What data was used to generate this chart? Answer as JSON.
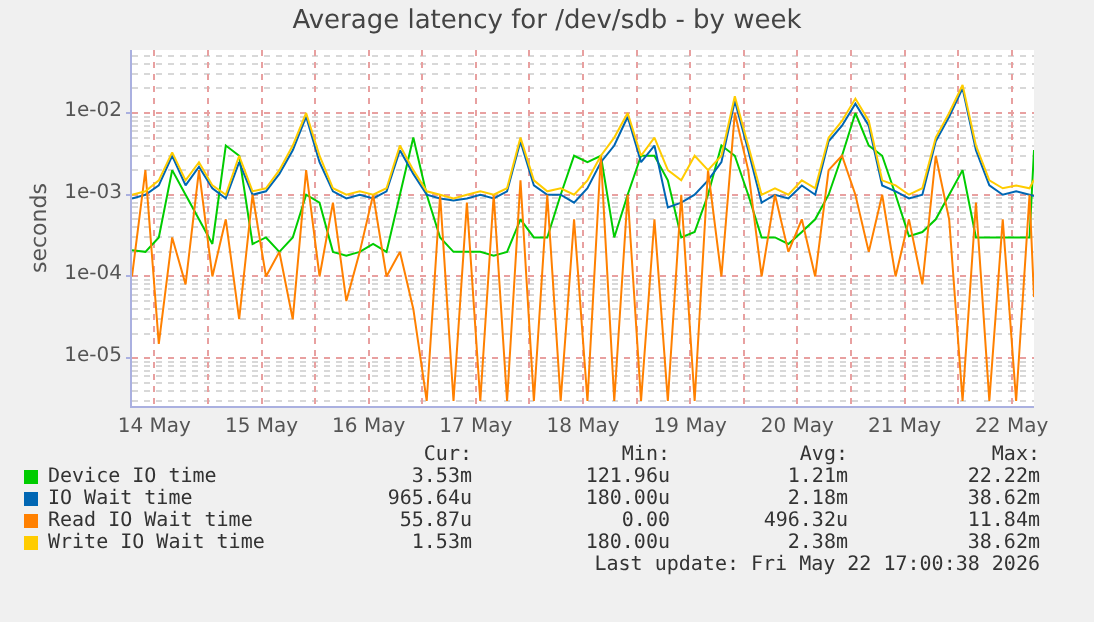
{
  "chart_data": {
    "type": "line",
    "title": "Average latency for /dev/sdb - by week",
    "ylabel": "seconds",
    "x": [
      "2026-05-14T07:00",
      "2026-05-14T10:00",
      "2026-05-14T13:00",
      "2026-05-14T16:00",
      "2026-05-14T19:00",
      "2026-05-14T22:00",
      "2026-05-15T01:00",
      "2026-05-15T04:00",
      "2026-05-15T07:00",
      "2026-05-15T10:00",
      "2026-05-15T13:00",
      "2026-05-15T16:00",
      "2026-05-15T19:00",
      "2026-05-15T22:00",
      "2026-05-16T01:00",
      "2026-05-16T04:00",
      "2026-05-16T07:00",
      "2026-05-16T10:00",
      "2026-05-16T13:00",
      "2026-05-16T16:00",
      "2026-05-16T19:00",
      "2026-05-16T22:00",
      "2026-05-17T01:00",
      "2026-05-17T04:00",
      "2026-05-17T07:00",
      "2026-05-17T10:00",
      "2026-05-17T13:00",
      "2026-05-17T16:00",
      "2026-05-17T19:00",
      "2026-05-17T22:00",
      "2026-05-18T01:00",
      "2026-05-18T04:00",
      "2026-05-18T07:00",
      "2026-05-18T10:00",
      "2026-05-18T13:00",
      "2026-05-18T16:00",
      "2026-05-18T19:00",
      "2026-05-18T22:00",
      "2026-05-19T01:00",
      "2026-05-19T04:00",
      "2026-05-19T07:00",
      "2026-05-19T10:00",
      "2026-05-19T13:00",
      "2026-05-19T16:00",
      "2026-05-19T19:00",
      "2026-05-19T22:00",
      "2026-05-20T01:00",
      "2026-05-20T04:00",
      "2026-05-20T07:00",
      "2026-05-20T10:00",
      "2026-05-20T13:00",
      "2026-05-20T16:00",
      "2026-05-20T19:00",
      "2026-05-20T22:00",
      "2026-05-21T01:00",
      "2026-05-21T04:00",
      "2026-05-21T07:00",
      "2026-05-21T10:00",
      "2026-05-21T13:00",
      "2026-05-21T16:00",
      "2026-05-21T19:00",
      "2026-05-21T22:00",
      "2026-05-22T01:00",
      "2026-05-22T04:00",
      "2026-05-22T07:00",
      "2026-05-22T10:00",
      "2026-05-22T13:00",
      "2026-05-22T16:00",
      "2026-05-22T17:00"
    ],
    "series": [
      {
        "name": "Device IO time",
        "color": "#00cc00",
        "values": [
          0.00021,
          0.0002,
          0.0003,
          0.002,
          0.001,
          0.0005,
          0.00025,
          0.004,
          0.003,
          0.00025,
          0.0003,
          0.0002,
          0.0003,
          0.001,
          0.0008,
          0.0002,
          0.00018,
          0.0002,
          0.00025,
          0.0002,
          0.001,
          0.005,
          0.001,
          0.0003,
          0.0002,
          0.0002,
          0.0002,
          0.00018,
          0.0002,
          0.0005,
          0.0003,
          0.0003,
          0.001,
          0.003,
          0.0025,
          0.003,
          0.0003,
          0.001,
          0.003,
          0.003,
          0.0015,
          0.0003,
          0.00035,
          0.001,
          0.004,
          0.003,
          0.001,
          0.0003,
          0.0003,
          0.00025,
          0.00035,
          0.0005,
          0.001,
          0.003,
          0.01,
          0.004,
          0.003,
          0.001,
          0.00031,
          0.00035,
          0.0005,
          0.001,
          0.002,
          0.0003,
          0.0003,
          0.0003,
          0.0003,
          0.0003,
          0.00353
        ]
      },
      {
        "name": "IO Wait time",
        "color": "#0066b3",
        "values": [
          0.0009,
          0.001,
          0.0013,
          0.003,
          0.0013,
          0.0022,
          0.0012,
          0.0009,
          0.0025,
          0.001,
          0.0011,
          0.0018,
          0.0035,
          0.009,
          0.0025,
          0.0011,
          0.0009,
          0.001,
          0.0009,
          0.0011,
          0.0035,
          0.0018,
          0.001,
          0.0009,
          0.00085,
          0.0009,
          0.001,
          0.0009,
          0.0011,
          0.0045,
          0.0013,
          0.001,
          0.001,
          0.0008,
          0.0012,
          0.0025,
          0.004,
          0.009,
          0.0025,
          0.004,
          0.0007,
          0.0008,
          0.001,
          0.0015,
          0.0025,
          0.014,
          0.0035,
          0.0008,
          0.001,
          0.0009,
          0.0013,
          0.001,
          0.0045,
          0.007,
          0.013,
          0.007,
          0.0013,
          0.0011,
          0.0009,
          0.001,
          0.0045,
          0.009,
          0.02,
          0.0035,
          0.0013,
          0.001,
          0.0011,
          0.001,
          0.000966
        ]
      },
      {
        "name": "Read IO Wait time",
        "color": "#ff8000",
        "values": [
          0.0001,
          0.002,
          1.5e-05,
          0.0003,
          8e-05,
          0.002,
          0.0001,
          0.0005,
          3e-05,
          0.001,
          0.0001,
          0.0002,
          3e-05,
          0.002,
          0.0001,
          0.0008,
          5e-05,
          0.0002,
          0.001,
          0.0001,
          0.0002,
          4e-05,
          3e-06,
          0.001,
          3e-06,
          0.0008,
          3e-06,
          0.001,
          3e-06,
          0.0015,
          3e-06,
          0.001,
          3e-06,
          0.0005,
          3e-06,
          0.003,
          3e-06,
          0.001,
          3e-06,
          0.0005,
          3e-06,
          0.001,
          3e-06,
          0.002,
          0.0001,
          0.01,
          0.002,
          0.0001,
          0.001,
          0.0002,
          0.0005,
          0.0001,
          0.002,
          0.003,
          0.001,
          0.0002,
          0.001,
          0.0001,
          0.0005,
          8e-05,
          0.003,
          0.0005,
          3e-06,
          0.0008,
          3e-06,
          0.0005,
          3e-06,
          0.001,
          5.59e-05
        ]
      },
      {
        "name": "Write IO Wait time",
        "color": "#ffcc00",
        "values": [
          0.001,
          0.0011,
          0.0015,
          0.0033,
          0.0015,
          0.0025,
          0.0013,
          0.001,
          0.003,
          0.0011,
          0.0012,
          0.002,
          0.004,
          0.01,
          0.003,
          0.0012,
          0.001,
          0.0011,
          0.001,
          0.0012,
          0.004,
          0.002,
          0.0011,
          0.001,
          0.0009,
          0.001,
          0.0011,
          0.001,
          0.0012,
          0.005,
          0.0015,
          0.0011,
          0.0012,
          0.001,
          0.0015,
          0.003,
          0.005,
          0.01,
          0.003,
          0.005,
          0.002,
          0.0015,
          0.003,
          0.002,
          0.003,
          0.016,
          0.004,
          0.001,
          0.0012,
          0.001,
          0.0015,
          0.0012,
          0.005,
          0.008,
          0.015,
          0.008,
          0.0015,
          0.0013,
          0.001,
          0.0012,
          0.005,
          0.01,
          0.022,
          0.004,
          0.0015,
          0.0012,
          0.0013,
          0.0012,
          0.00153
        ]
      }
    ],
    "log": "y",
    "ylim": [
      2.6e-06,
      0.059
    ],
    "yticks": [
      {
        "value": 1e-05,
        "label": "1e-05"
      },
      {
        "value": 0.0001,
        "label": "1e-04"
      },
      {
        "value": 0.001,
        "label": "1e-03"
      },
      {
        "value": 0.01,
        "label": "1e-02"
      }
    ],
    "xlim": [
      "2026-05-14T07:00",
      "2026-05-22T17:00"
    ],
    "xticks": [
      {
        "value": "2026-05-14T12:00",
        "label": "14 May"
      },
      {
        "value": "2026-05-15T00:00",
        "label": null
      },
      {
        "value": "2026-05-15T12:00",
        "label": "15 May"
      },
      {
        "value": "2026-05-16T00:00",
        "label": null
      },
      {
        "value": "2026-05-16T12:00",
        "label": "16 May"
      },
      {
        "value": "2026-05-17T00:00",
        "label": null
      },
      {
        "value": "2026-05-17T12:00",
        "label": "17 May"
      },
      {
        "value": "2026-05-18T00:00",
        "label": null
      },
      {
        "value": "2026-05-18T12:00",
        "label": "18 May"
      },
      {
        "value": "2026-05-19T00:00",
        "label": null
      },
      {
        "value": "2026-05-19T12:00",
        "label": "19 May"
      },
      {
        "value": "2026-05-20T00:00",
        "label": null
      },
      {
        "value": "2026-05-20T12:00",
        "label": "20 May"
      },
      {
        "value": "2026-05-21T00:00",
        "label": null
      },
      {
        "value": "2026-05-21T12:00",
        "label": "21 May"
      },
      {
        "value": "2026-05-22T00:00",
        "label": null
      },
      {
        "value": "2026-05-22T12:00",
        "label": "22 May"
      }
    ],
    "grid": true,
    "legend": "bottom",
    "annotations": [
      "Cur:",
      "Min:",
      "Avg:",
      "Max:",
      "3.53m",
      "121.96u",
      "1.21m",
      "22.22m",
      "965.64u",
      "180.00u",
      "2.18m",
      "38.62m",
      "55.87u",
      "0.00",
      "496.32u",
      "11.84m",
      "1.53m",
      "180.00u",
      "2.38m",
      "38.62m",
      "Last update: Fri May 22 17:00:38 2026"
    ]
  }
}
